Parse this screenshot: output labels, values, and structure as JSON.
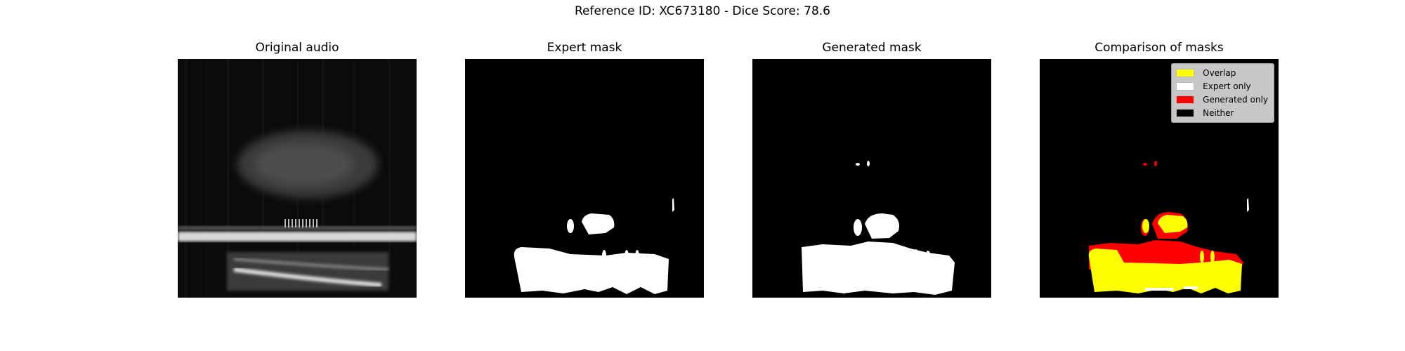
{
  "figure": {
    "suptitle": "Reference ID: XC673180 - Dice Score: 78.6"
  },
  "panels": [
    {
      "title": "Original audio"
    },
    {
      "title": "Expert mask"
    },
    {
      "title": "Generated mask"
    },
    {
      "title": "Comparison of masks"
    }
  ],
  "legend": {
    "items": [
      {
        "label": "Overlap",
        "color": "#ffff00"
      },
      {
        "label": "Expert only",
        "color": "#ffffff"
      },
      {
        "label": "Generated only",
        "color": "#ff0000"
      },
      {
        "label": "Neither",
        "color": "#000000"
      }
    ]
  },
  "chart_data": [
    {
      "type": "heatmap",
      "title": "Original audio",
      "colormap": "grayscale spectrogram",
      "axes": "off"
    },
    {
      "type": "heatmap",
      "title": "Expert mask",
      "colormap": "binary (white = mask, black = background)",
      "axes": "off"
    },
    {
      "type": "heatmap",
      "title": "Generated mask",
      "colormap": "binary (white = mask, black = background)",
      "axes": "off"
    },
    {
      "type": "heatmap",
      "title": "Comparison of masks",
      "categories": [
        "Overlap",
        "Expert only",
        "Generated only",
        "Neither"
      ],
      "colors": [
        "#ffff00",
        "#ffffff",
        "#ff0000",
        "#000000"
      ],
      "legend_position": "top-right",
      "axes": "off",
      "dice_score": 78.6
    }
  ]
}
